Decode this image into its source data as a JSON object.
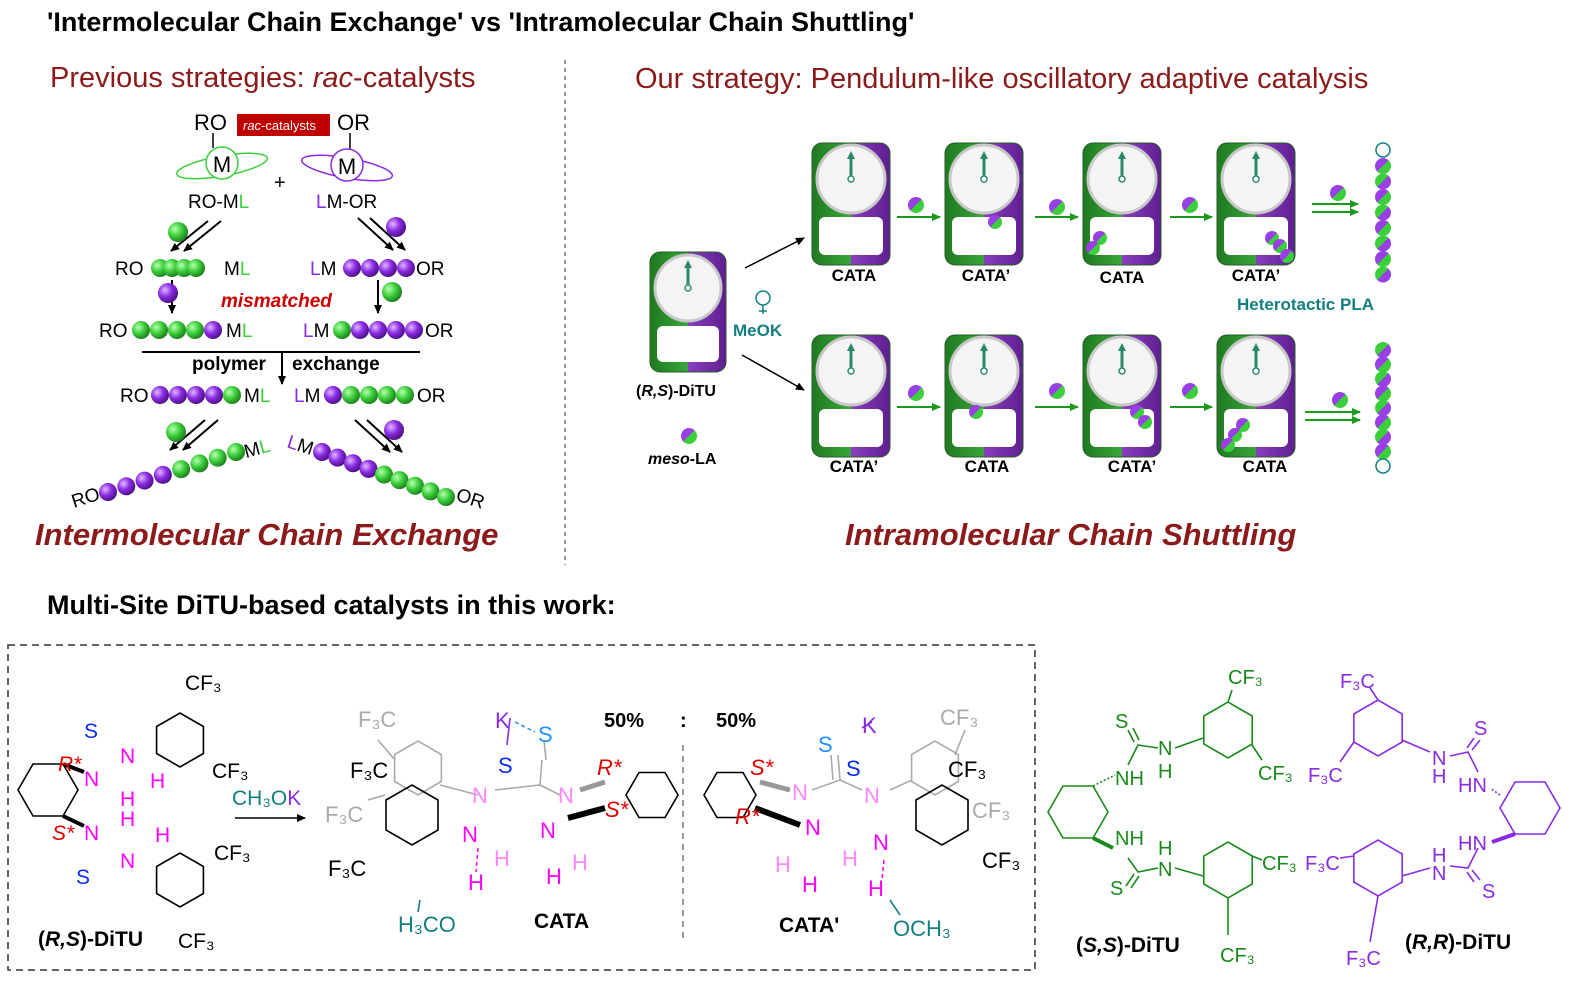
{
  "title": "'Intermolecular Chain Exchange' vs 'Intramolecular Chain Shuttling'",
  "colors": {
    "heading": "#8b1a1a",
    "green": "#3ccf3c",
    "purple": "#8a2be2",
    "teal": "#138080",
    "magenta": "#ff00ff",
    "red": "#e00000",
    "blue": "#0a2cf0",
    "dark_green": "#1a8a1a",
    "badge": "#c00000"
  },
  "left_panel": {
    "heading_prefix": "Previous strategies: ",
    "heading_italic": "rac",
    "heading_suffix": "-catalysts",
    "badge_italic": "rac",
    "badge_suffix": "-catalysts",
    "ro": "RO",
    "or": "OR",
    "m": "M",
    "plus": "+",
    "l": "L",
    "ml_m": "M",
    "lm_m": "M",
    "ro_m": "RO-M",
    "m_or": "M-OR",
    "mismatched": "mismatched",
    "polymer": "polymer",
    "exchange": "exchange",
    "chains": [
      {
        "seq": "gggg"
      },
      {
        "seq": "pppp"
      },
      {
        "seq": "ggggp"
      },
      {
        "seq": "gpppp"
      },
      {
        "seq": "ppppg"
      },
      {
        "seq": "pgggg"
      },
      {
        "seq": "ppppgggg"
      },
      {
        "seq": "ppppggggg"
      }
    ],
    "footer": "Intermolecular Chain Exchange"
  },
  "right_panel": {
    "heading": "Our strategy: Pendulum-like oscillatory adaptive catalysis",
    "initial_name_open": "(",
    "initial_name_italic": "R,S",
    "initial_name_close": ")-DiTU",
    "meok": "MeOK",
    "meso_italic": "meso",
    "meso_suffix": "-LA",
    "top_row": [
      "CATA",
      "CATA’",
      "CATA",
      "CATA’"
    ],
    "bottom_row": [
      "CATA’",
      "CATA",
      "CATA’",
      "CATA"
    ],
    "product_label": "Heterotactic PLA",
    "footer": "Intramolecular Chain Shuttling"
  },
  "bottom": {
    "heading": "Multi-Site DiTU-based catalysts in this work:",
    "reagent_main": "CH₃O",
    "reagent_k": "K",
    "ratio_left": "50%",
    "ratio_sep": ":",
    "ratio_right": "50%",
    "rs_name": {
      "open": "(",
      "italic": "R,S",
      "close": ")-DiTU"
    },
    "ss_name": {
      "open": "(",
      "italic": "S,S",
      "close": ")-DiTU"
    },
    "rr_name": {
      "open": "(",
      "italic": "R,R",
      "close": ")-DiTU"
    },
    "cata_name": "CATA",
    "cata_prime_name": "CATA'",
    "rs_labels": [
      {
        "text": "S",
        "color": "#0a2cf0"
      },
      {
        "text": "N",
        "color": "#ff00ff"
      },
      {
        "text": "H",
        "color": "#ff00ff"
      },
      {
        "text": "R*",
        "color": "#e00000"
      },
      {
        "text": "N",
        "color": "#ff00ff"
      },
      {
        "text": "H",
        "color": "#ff00ff"
      },
      {
        "text": "N",
        "color": "#ff00ff"
      },
      {
        "text": "H",
        "color": "#ff00ff"
      },
      {
        "text": "S*",
        "color": "#e00000"
      },
      {
        "text": "H",
        "color": "#ff00ff"
      },
      {
        "text": "N",
        "color": "#ff00ff"
      },
      {
        "text": "S",
        "color": "#0a2cf0"
      },
      {
        "text": "CF₃",
        "color": "#000000"
      },
      {
        "text": "CF₃",
        "color": "#000000"
      },
      {
        "text": "CF₃",
        "color": "#000000"
      },
      {
        "text": "CF₃",
        "color": "#000000"
      }
    ],
    "cata_labels": [
      {
        "text": "F₃C",
        "color": "#aaaaaa"
      },
      {
        "text": "K",
        "color": "#8a2be2"
      },
      {
        "text": "S",
        "color": "#1e90ff"
      },
      {
        "text": "S",
        "color": "#0a2cf0"
      },
      {
        "text": "F₃C",
        "color": "#000000"
      },
      {
        "text": "N",
        "color": "#ff88ff"
      },
      {
        "text": "N",
        "color": "#ff88ff"
      },
      {
        "text": "R*",
        "color": "#e00000"
      },
      {
        "text": "S*",
        "color": "#e00000"
      },
      {
        "text": "F₃C",
        "color": "#aaaaaa"
      },
      {
        "text": "N",
        "color": "#ff00ff"
      },
      {
        "text": "N",
        "color": "#ff00ff"
      },
      {
        "text": "H",
        "color": "#ff88ff"
      },
      {
        "text": "H",
        "color": "#ff88ff"
      },
      {
        "text": "F₃C",
        "color": "#000000"
      },
      {
        "text": "H",
        "color": "#ff00ff"
      },
      {
        "text": "H",
        "color": "#ff00ff"
      },
      {
        "text": "H₃CO",
        "color": "#138080"
      }
    ],
    "cata_prime_labels": [
      {
        "text": "S*",
        "color": "#e00000"
      },
      {
        "text": "K",
        "color": "#8a2be2"
      },
      {
        "text": "CF₃",
        "color": "#aaaaaa"
      },
      {
        "text": "S",
        "color": "#1e90ff"
      },
      {
        "text": "S",
        "color": "#0a2cf0"
      },
      {
        "text": "N",
        "color": "#ff88ff"
      },
      {
        "text": "N",
        "color": "#ff88ff"
      },
      {
        "text": "CF₃",
        "color": "#000000"
      },
      {
        "text": "R*",
        "color": "#e00000"
      },
      {
        "text": "N",
        "color": "#ff00ff"
      },
      {
        "text": "CF₃",
        "color": "#aaaaaa"
      },
      {
        "text": "H",
        "color": "#ff88ff"
      },
      {
        "text": "H",
        "color": "#ff00ff"
      },
      {
        "text": "H",
        "color": "#ff88ff"
      },
      {
        "text": "N",
        "color": "#ff00ff"
      },
      {
        "text": "H",
        "color": "#ff00ff"
      },
      {
        "text": "CF₃",
        "color": "#000000"
      },
      {
        "text": "OCH₃",
        "color": "#138080"
      }
    ],
    "ss_labels": [
      "CF₃",
      "S",
      "N",
      "H",
      "NH",
      "CF₃",
      "NH",
      "H",
      "N",
      "S",
      "CF₃",
      "CF₃"
    ],
    "rr_labels": [
      "F₃C",
      "S",
      "F₃C",
      "N",
      "H",
      "HN",
      "HN",
      "H",
      "N",
      "S",
      "F₃C",
      "F₃C"
    ]
  }
}
